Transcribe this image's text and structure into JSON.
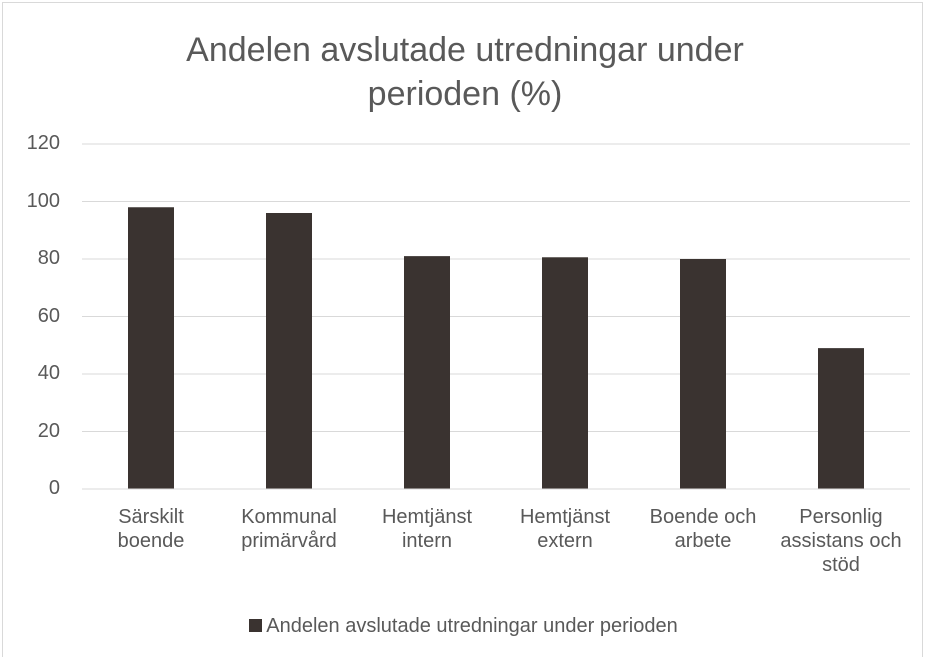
{
  "chart_data": {
    "type": "bar",
    "title": "Andelen avslutade utredningar under perioden (%)",
    "categories": [
      "Särskilt boende",
      "Kommunal primärvård",
      "Hemtjänst intern",
      "Hemtjänst extern",
      "Boende och arbete",
      "Personlig assistans och stöd"
    ],
    "series": [
      {
        "name": "Andelen avslutade utredningar under perioden",
        "color": "#3a3330",
        "values": [
          98,
          96,
          81,
          80.6,
          80,
          49
        ]
      }
    ],
    "ylim": [
      0,
      120
    ],
    "yticks": [
      0,
      20,
      40,
      60,
      80,
      100,
      120
    ],
    "grid": true,
    "legend": "bottom"
  }
}
